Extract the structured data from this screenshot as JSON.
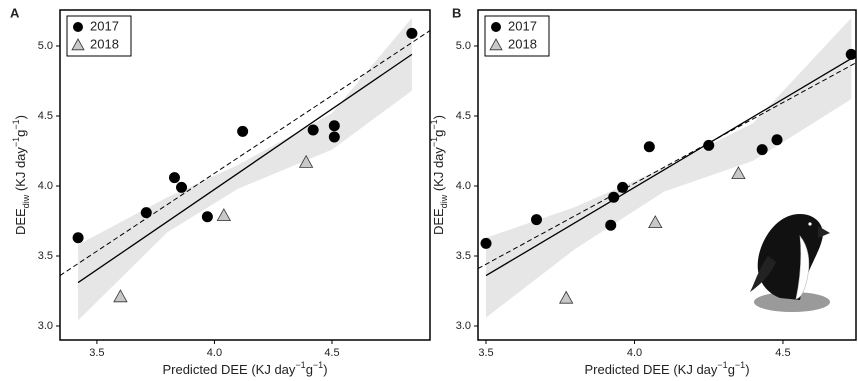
{
  "chart_data": [
    {
      "type": "scatter",
      "panel": "A",
      "x_label": [
        "Predicted DEE (KJ day",
        "−1",
        "g",
        "−1",
        ")"
      ],
      "y_label": [
        "DEE",
        "diw",
        " (KJ day",
        "−1",
        "g",
        "−1",
        ")"
      ],
      "xlim": [
        3.343,
        4.917
      ],
      "ylim": [
        2.9,
        5.257
      ],
      "xticks": [
        3.5,
        {
          "value": 4,
          "label": "4.0"
        },
        4.5
      ],
      "yticks": [
        {
          "value": 3,
          "label": "3.0"
        },
        3.5,
        {
          "value": 4,
          "label": "4.0"
        },
        4.5,
        {
          "value": 5,
          "label": "5.0"
        }
      ],
      "legend": "upper left",
      "series": [
        {
          "name": "2017",
          "marker": "circle",
          "color": "#000000",
          "x": [
            3.42,
            3.71,
            3.83,
            3.86,
            3.97,
            4.12,
            4.42,
            4.51,
            4.51,
            4.84
          ],
          "values": [
            3.63,
            3.81,
            4.06,
            3.99,
            3.78,
            4.39,
            4.4,
            4.43,
            4.35,
            5.09
          ]
        },
        {
          "name": "2018",
          "marker": "triangle",
          "color": "#c8c8c8",
          "x": [
            3.6,
            4.04,
            4.39
          ],
          "values": [
            3.21,
            3.79,
            4.17
          ]
        }
      ],
      "confidence_band": {
        "color": "#e6e6e6",
        "x": [
          3.42,
          3.8,
          4.1,
          4.5,
          4.84
        ],
        "lower": [
          3.04,
          3.67,
          3.98,
          4.26,
          4.68
        ],
        "upper": [
          3.58,
          3.92,
          4.15,
          4.52,
          5.2
        ]
      },
      "fit_lines": [
        {
          "style": "solid",
          "x": [
            3.42,
            4.84
          ],
          "values": [
            3.31,
            4.94
          ]
        },
        {
          "style": "dashed",
          "x": [
            3.343,
            4.917
          ],
          "values": [
            3.36,
            5.11
          ]
        }
      ]
    },
    {
      "type": "scatter",
      "panel": "B",
      "x_label": [
        "Predicted DEE (KJ day",
        "−1",
        "g",
        "−1",
        ")"
      ],
      "y_label": [
        "DEE",
        "diw",
        " (KJ day",
        "−1",
        "g",
        "−1",
        ")"
      ],
      "xlim": [
        3.473,
        4.746
      ],
      "ylim": [
        2.9,
        5.257
      ],
      "xticks": [
        3.5,
        {
          "value": 4,
          "label": "4.0"
        },
        4.5
      ],
      "yticks": [
        {
          "value": 3,
          "label": "3.0"
        },
        3.5,
        {
          "value": 4,
          "label": "4.0"
        },
        4.5,
        {
          "value": 5,
          "label": "5.0"
        }
      ],
      "legend": "upper left",
      "series": [
        {
          "name": "2017",
          "marker": "circle",
          "color": "#000000",
          "x": [
            3.5,
            3.67,
            3.92,
            3.93,
            3.96,
            4.05,
            4.25,
            4.43,
            4.48,
            4.73
          ],
          "values": [
            3.59,
            3.76,
            3.72,
            3.92,
            3.99,
            4.28,
            4.29,
            4.26,
            4.33,
            4.94
          ]
        },
        {
          "name": "2018",
          "marker": "triangle",
          "color": "#c8c8c8",
          "x": [
            3.77,
            4.07,
            4.35
          ],
          "values": [
            3.2,
            3.74,
            4.09
          ]
        }
      ],
      "confidence_band": {
        "color": "#e6e6e6",
        "x": [
          3.5,
          3.8,
          4.1,
          4.4,
          4.73
        ],
        "lower": [
          3.06,
          3.55,
          3.96,
          4.18,
          4.62
        ],
        "upper": [
          3.63,
          3.85,
          4.13,
          4.45,
          5.2
        ]
      },
      "fit_lines": [
        {
          "style": "solid",
          "x": [
            3.5,
            4.73
          ],
          "values": [
            3.36,
            4.91
          ]
        },
        {
          "style": "dashed",
          "x": [
            3.473,
            4.746
          ],
          "values": [
            3.41,
            4.88
          ]
        }
      ]
    }
  ]
}
